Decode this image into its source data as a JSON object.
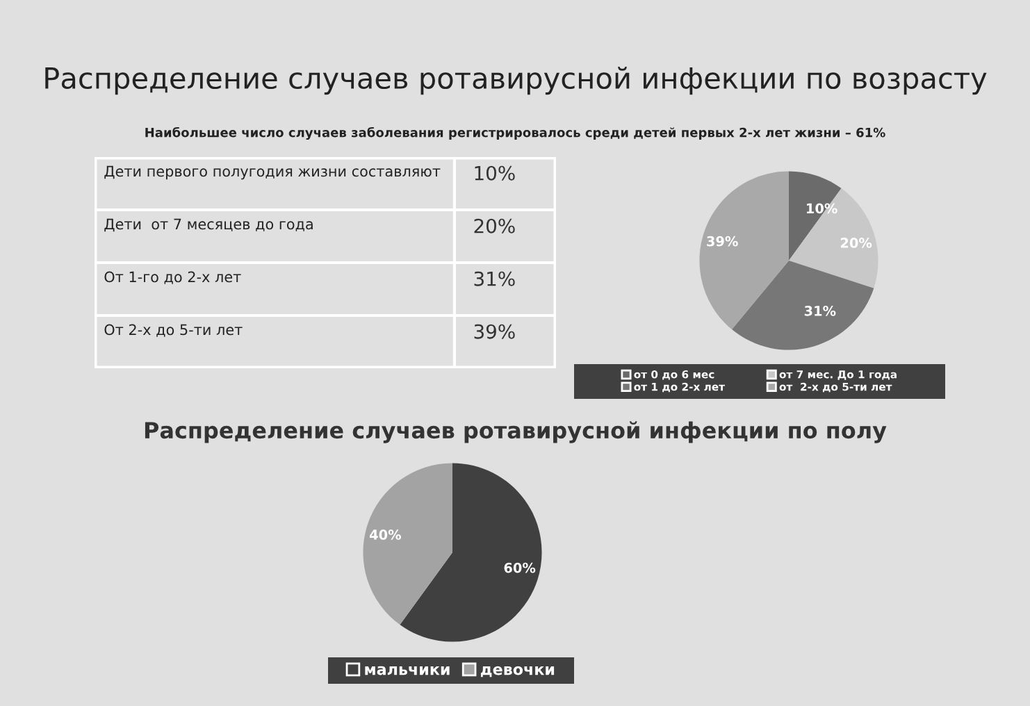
{
  "chart_data": [
    {
      "type": "other",
      "title": "Распределение случаев ротавирусной инфекции по возрасту",
      "subtitle": "Наибольшее число случаев заболевания регистрировалось среди детей первых 2-х лет жизни – 61%",
      "annotations": [
        "Дети первого полугодия жизни составляют",
        "10%",
        "Дети  от 7 месяцев до года",
        "20%",
        "От 1-го до 2-х лет",
        "31%",
        "От 2-х до 5-ти лет",
        "39%"
      ]
    },
    {
      "type": "pie",
      "categories": [
        "от 0 до 6 мес",
        "от 7 мес. До 1 года",
        "от 1 до 2-х лет",
        "от  2-х до 5-ти лет"
      ],
      "values": [
        10,
        20,
        31,
        39
      ],
      "colors": [
        "#6b6b6b",
        "#c8c8c8",
        "#777777",
        "#a9a9a9"
      ],
      "value_labels": [
        "10%",
        "20%",
        "31%",
        "39%"
      ],
      "legend": "bottom"
    },
    {
      "type": "pie",
      "title": "Распределение случаев ротавирусной инфекции по полу",
      "categories": [
        "мальчики",
        "девочки"
      ],
      "values": [
        60,
        40
      ],
      "colors": [
        "#404040",
        "#a3a3a3"
      ],
      "value_labels": [
        "60%",
        "40%"
      ],
      "legend": "bottom"
    }
  ]
}
